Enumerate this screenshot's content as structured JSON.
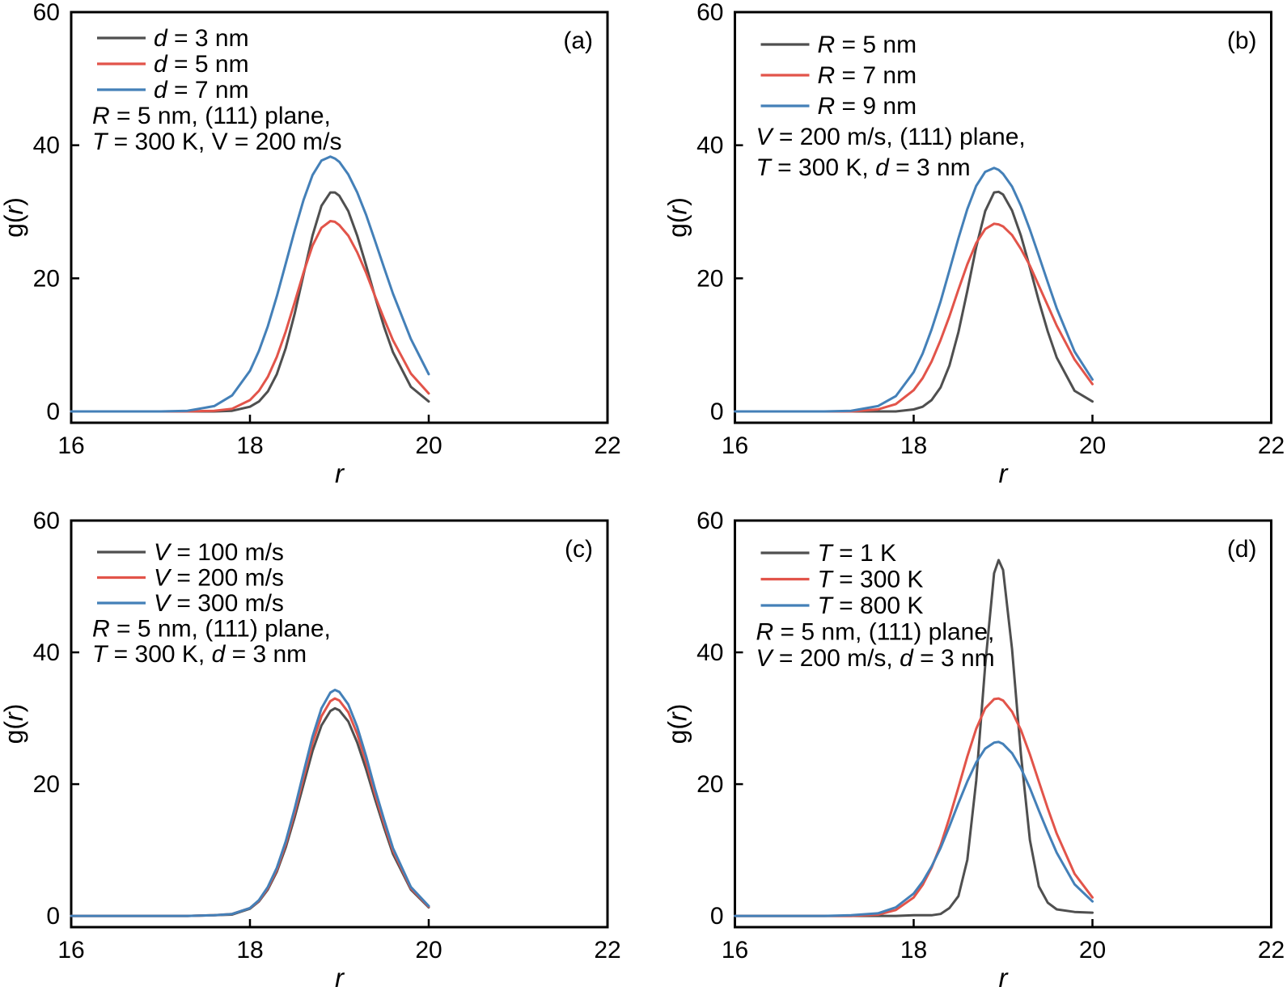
{
  "figure": {
    "background": "#ffffff",
    "axis_color": "#000000",
    "series_colors": {
      "dark": "#4f4f4f",
      "red": "#e2544a",
      "blue": "#4480b8"
    }
  },
  "chart_data": [
    {
      "type": "line",
      "panel_label": "(a)",
      "xlabel": "r",
      "xlabel_markup": "*r*",
      "ylabel": "g(r)",
      "ylabel_markup": "g(*r*)",
      "xlim": [
        16,
        22
      ],
      "ylim": [
        0,
        60
      ],
      "x_ticks": [
        16,
        18,
        20,
        22
      ],
      "y_ticks": [
        0,
        20,
        40,
        60
      ],
      "grid": false,
      "legend_position": "top-left",
      "annotation": [
        "R = 5 nm, (111) plane,",
        "T = 300 K, V = 200 m/s"
      ],
      "annotation_markup": [
        "*R* = 5 nm, (111) plane,",
        "*T* = 300 K, V = 200 m/s"
      ],
      "x": [
        16,
        16.5,
        17,
        17.3,
        17.6,
        17.8,
        18,
        18.1,
        18.2,
        18.3,
        18.4,
        18.5,
        18.6,
        18.7,
        18.8,
        18.9,
        18.95,
        19,
        19.1,
        19.2,
        19.3,
        19.4,
        19.5,
        19.6,
        19.8,
        20
      ],
      "series": [
        {
          "name": "d = 3 nm",
          "label_markup": "*d* = 3 nm",
          "color": "#4f4f4f",
          "peak_r": 18.9,
          "peak_g": 33.0,
          "y": [
            0,
            0,
            0,
            0,
            0,
            0.1,
            0.7,
            1.5,
            3.0,
            5.6,
            9.5,
            14.7,
            20.6,
            26.4,
            30.9,
            32.9,
            32.9,
            32.4,
            30.1,
            26.4,
            21.9,
            17.2,
            12.7,
            8.9,
            3.7,
            1.5
          ]
        },
        {
          "name": "d = 5 nm",
          "label_markup": "*d* = 5 nm",
          "color": "#e2544a",
          "peak_r": 18.9,
          "peak_g": 28.6,
          "y": [
            0,
            0,
            0,
            0,
            0.1,
            0.4,
            1.7,
            3.1,
            5.2,
            8.2,
            12.0,
            16.4,
            20.9,
            24.9,
            27.6,
            28.6,
            28.5,
            28.0,
            26.4,
            23.9,
            20.8,
            17.3,
            13.9,
            10.7,
            5.7,
            2.7
          ]
        },
        {
          "name": "d = 7 nm",
          "label_markup": "*d* = 7 nm",
          "color": "#4480b8",
          "peak_r": 18.9,
          "peak_g": 38.3,
          "y": [
            0,
            0,
            0,
            0.1,
            0.8,
            2.4,
            6.1,
            9.1,
            12.8,
            17.3,
            22.2,
            27.2,
            31.8,
            35.5,
            37.7,
            38.3,
            38.0,
            37.5,
            35.6,
            32.9,
            29.5,
            25.6,
            21.6,
            17.7,
            10.9,
            5.6
          ]
        }
      ]
    },
    {
      "type": "line",
      "panel_label": "(b)",
      "xlabel": "r",
      "xlabel_markup": "*r*",
      "ylabel": "g(r)",
      "ylabel_markup": "g(*r*)",
      "xlim": [
        16,
        22
      ],
      "ylim": [
        0,
        60
      ],
      "x_ticks": [
        16,
        18,
        20,
        22
      ],
      "y_ticks": [
        0,
        20,
        40,
        60
      ],
      "grid": false,
      "legend_position": "top-left",
      "annotation": [
        "V = 200 m/s, (111) plane,",
        "T = 300 K, d = 3 nm"
      ],
      "annotation_markup": [
        "*V* = 200 m/s, (111) plane,",
        "*T* = 300 K, *d* = 3 nm"
      ],
      "x": [
        16,
        16.5,
        17,
        17.3,
        17.6,
        17.8,
        18,
        18.1,
        18.2,
        18.3,
        18.4,
        18.5,
        18.6,
        18.7,
        18.8,
        18.9,
        18.95,
        19,
        19.1,
        19.2,
        19.3,
        19.4,
        19.5,
        19.6,
        19.8,
        20
      ],
      "series": [
        {
          "name": "R = 5 nm",
          "label_markup": "*R* = 5 nm",
          "color": "#4f4f4f",
          "peak_r": 18.93,
          "peak_g": 33.0,
          "y": [
            0,
            0,
            0,
            0,
            0,
            0,
            0.3,
            0.7,
            1.7,
            3.6,
            6.9,
            11.9,
            18.1,
            24.7,
            30.1,
            32.9,
            33.0,
            32.6,
            30.2,
            26.4,
            21.6,
            16.6,
            12.0,
            8.1,
            3.1,
            1.5
          ]
        },
        {
          "name": "R = 7 nm",
          "label_markup": "*R* = 7 nm",
          "color": "#e2544a",
          "peak_r": 18.9,
          "peak_g": 28.2,
          "y": [
            0,
            0,
            0,
            0,
            0.3,
            1.1,
            3.2,
            5.0,
            7.5,
            10.7,
            14.3,
            18.3,
            22.1,
            25.3,
            27.4,
            28.2,
            28.1,
            27.8,
            26.5,
            24.4,
            21.9,
            18.9,
            15.9,
            12.9,
            7.8,
            4.1
          ]
        },
        {
          "name": "R = 9 nm",
          "label_markup": "*R* = 9 nm",
          "color": "#4480b8",
          "peak_r": 18.9,
          "peak_g": 36.6,
          "y": [
            0,
            0,
            0,
            0.1,
            0.8,
            2.3,
            5.9,
            8.7,
            12.3,
            16.5,
            21.2,
            26.0,
            30.4,
            33.9,
            36.0,
            36.6,
            36.3,
            35.7,
            33.8,
            30.9,
            27.3,
            23.4,
            19.4,
            15.5,
            9.0,
            4.8
          ]
        }
      ]
    },
    {
      "type": "line",
      "panel_label": "(c)",
      "xlabel": "r",
      "xlabel_markup": "*r*",
      "ylabel": "g(r)",
      "ylabel_markup": "g(*r*)",
      "xlim": [
        16,
        22
      ],
      "ylim": [
        0,
        60
      ],
      "x_ticks": [
        16,
        18,
        20,
        22
      ],
      "y_ticks": [
        0,
        20,
        40,
        60
      ],
      "grid": false,
      "legend_position": "top-left",
      "annotation": [
        "R = 5 nm, (111) plane,",
        "T = 300 K, d = 3 nm"
      ],
      "annotation_markup": [
        "*R* = 5 nm, (111) plane,",
        "*T* = 300 K, *d* = 3 nm"
      ],
      "x": [
        16,
        16.5,
        17,
        17.3,
        17.6,
        17.8,
        18,
        18.1,
        18.2,
        18.3,
        18.4,
        18.5,
        18.6,
        18.7,
        18.8,
        18.9,
        18.95,
        19,
        19.1,
        19.2,
        19.3,
        19.4,
        19.5,
        19.6,
        19.8,
        20
      ],
      "series": [
        {
          "name": "V = 100 m/s",
          "label_markup": "*V* = 100 m/s",
          "color": "#4f4f4f",
          "peak_r": 18.95,
          "peak_g": 31.5,
          "y": [
            0,
            0,
            0,
            0,
            0.1,
            0.2,
            1.1,
            2.2,
            4.0,
            6.7,
            10.4,
            15.0,
            20.0,
            25.0,
            28.9,
            31.1,
            31.5,
            31.2,
            29.5,
            26.3,
            22.2,
            17.7,
            13.4,
            9.4,
            4.0,
            1.3
          ]
        },
        {
          "name": "V = 200 m/s",
          "label_markup": "*V* = 200 m/s",
          "color": "#e2544a",
          "peak_r": 18.95,
          "peak_g": 33.0,
          "y": [
            0,
            0,
            0,
            0,
            0.1,
            0.3,
            1.2,
            2.3,
            4.2,
            7.0,
            10.9,
            15.7,
            21.0,
            26.2,
            30.3,
            32.6,
            33.0,
            32.7,
            30.9,
            27.6,
            23.3,
            18.5,
            14.0,
            9.9,
            4.2,
            1.4
          ]
        },
        {
          "name": "V = 300 m/s",
          "label_markup": "*V* = 300 m/s",
          "color": "#4480b8",
          "peak_r": 18.95,
          "peak_g": 34.3,
          "y": [
            0,
            0,
            0,
            0,
            0.1,
            0.3,
            1.2,
            2.4,
            4.4,
            7.3,
            11.3,
            16.3,
            21.8,
            27.2,
            31.5,
            33.9,
            34.3,
            34.0,
            32.1,
            28.7,
            24.2,
            19.2,
            14.6,
            10.3,
            4.4,
            1.5
          ]
        }
      ]
    },
    {
      "type": "line",
      "panel_label": "(d)",
      "xlabel": "r",
      "xlabel_markup": "*r*",
      "ylabel": "g(r)",
      "ylabel_markup": "g(*r*)",
      "xlim": [
        16,
        22
      ],
      "ylim": [
        0,
        60
      ],
      "x_ticks": [
        16,
        18,
        20,
        22
      ],
      "y_ticks": [
        0,
        20,
        40,
        60
      ],
      "grid": false,
      "legend_position": "top-left",
      "annotation": [
        "R = 5 nm, (111) plane,",
        "V = 200 m/s, d = 3 nm"
      ],
      "annotation_markup": [
        "*R* = 5 nm, (111) plane,",
        "*V* = 200 m/s, *d* = 3 nm"
      ],
      "x": [
        16,
        16.5,
        17,
        17.3,
        17.6,
        17.8,
        18,
        18.1,
        18.2,
        18.3,
        18.4,
        18.5,
        18.6,
        18.7,
        18.8,
        18.9,
        18.95,
        19,
        19.1,
        19.2,
        19.3,
        19.4,
        19.5,
        19.6,
        19.8,
        20
      ],
      "series": [
        {
          "name": "T = 1 K",
          "label_markup": "*T* = 1 K",
          "color": "#4f4f4f",
          "peak_r": 18.95,
          "peak_g": 54.0,
          "y": [
            0,
            0,
            0,
            0,
            0,
            0,
            0.1,
            0.1,
            0.1,
            0.3,
            1.2,
            3.0,
            8.5,
            20.5,
            38.0,
            52.0,
            54.0,
            52.5,
            40.5,
            24.5,
            11.5,
            4.5,
            2.0,
            1.0,
            0.6,
            0.5
          ]
        },
        {
          "name": "T = 300 K",
          "label_markup": "*T* = 300 K",
          "color": "#e2544a",
          "peak_r": 18.95,
          "peak_g": 33.0,
          "y": [
            0,
            0,
            0,
            0,
            0.2,
            0.9,
            2.8,
            4.7,
            7.3,
            10.7,
            14.9,
            19.5,
            24.2,
            28.4,
            31.5,
            32.9,
            33.0,
            32.7,
            31.0,
            28.2,
            24.5,
            20.4,
            16.3,
            12.5,
            6.4,
            2.8
          ]
        },
        {
          "name": "T = 800 K",
          "label_markup": "*T* = 800 K",
          "color": "#4480b8",
          "peak_r": 18.95,
          "peak_g": 26.4,
          "y": [
            0,
            0,
            0,
            0.1,
            0.4,
            1.3,
            3.4,
            5.2,
            7.5,
            10.3,
            13.6,
            17.1,
            20.4,
            23.3,
            25.4,
            26.3,
            26.4,
            26.1,
            24.7,
            22.4,
            19.4,
            16.0,
            12.7,
            9.6,
            4.8,
            2.2
          ]
        }
      ]
    }
  ]
}
